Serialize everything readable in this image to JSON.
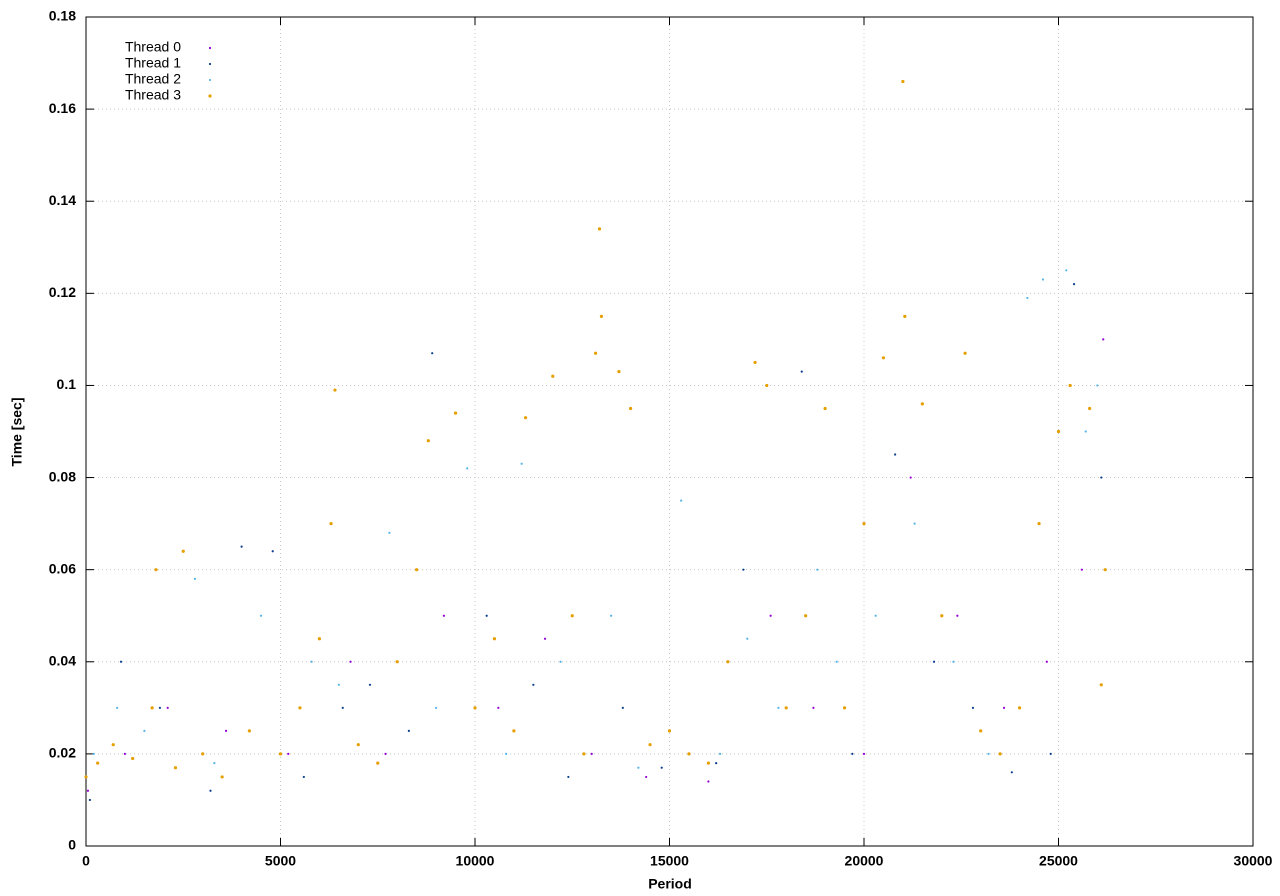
{
  "chart_data": {
    "type": "scatter",
    "xlabel": "Period",
    "ylabel": "Time [sec]",
    "xlim": [
      0,
      30000
    ],
    "xticks": [
      0,
      5000,
      10000,
      15000,
      20000,
      25000,
      30000
    ],
    "ylim": [
      0,
      0.18
    ],
    "yticks": [
      0,
      0.02,
      0.04,
      0.06,
      0.08,
      0.1,
      0.12,
      0.14,
      0.16,
      0.18
    ],
    "grid": true,
    "legend": "top-left",
    "series": [
      {
        "name": "Thread 0",
        "color": "#9400d3",
        "x": [
          50,
          1000,
          2100,
          3600,
          5200,
          6800,
          7700,
          9200,
          10600,
          11800,
          13000,
          14400,
          16000,
          17600,
          18700,
          20000,
          21200,
          22400,
          23600,
          24700,
          25600,
          26150
        ],
        "values": [
          0.012,
          0.02,
          0.03,
          0.025,
          0.02,
          0.04,
          0.02,
          0.05,
          0.03,
          0.045,
          0.02,
          0.015,
          0.014,
          0.05,
          0.03,
          0.02,
          0.08,
          0.05,
          0.03,
          0.04,
          0.06,
          0.11
        ]
      },
      {
        "name": "Thread 1",
        "color": "#0a3f8c",
        "x": [
          100,
          900,
          1900,
          3200,
          4000,
          4800,
          5600,
          6600,
          7300,
          8300,
          8900,
          10300,
          11500,
          12400,
          13800,
          14800,
          16200,
          16900,
          18400,
          19700,
          20800,
          21800,
          22800,
          23800,
          24800,
          25400,
          26100
        ],
        "values": [
          0.01,
          0.04,
          0.03,
          0.012,
          0.065,
          0.064,
          0.015,
          0.03,
          0.035,
          0.025,
          0.107,
          0.05,
          0.035,
          0.015,
          0.03,
          0.017,
          0.018,
          0.06,
          0.103,
          0.02,
          0.085,
          0.04,
          0.03,
          0.016,
          0.02,
          0.122,
          0.08
        ]
      },
      {
        "name": "Thread 2",
        "color": "#56b4e9",
        "x": [
          200,
          800,
          1500,
          2800,
          3300,
          4500,
          5800,
          6500,
          7800,
          9000,
          9800,
          10800,
          11200,
          12200,
          13500,
          14200,
          15300,
          16300,
          17000,
          17800,
          18800,
          19300,
          20300,
          21300,
          22300,
          23200,
          24200,
          24600,
          25200,
          25700,
          26000
        ],
        "values": [
          0.02,
          0.03,
          0.025,
          0.058,
          0.018,
          0.05,
          0.04,
          0.035,
          0.068,
          0.03,
          0.082,
          0.02,
          0.083,
          0.04,
          0.05,
          0.017,
          0.075,
          0.02,
          0.045,
          0.03,
          0.06,
          0.04,
          0.05,
          0.07,
          0.04,
          0.02,
          0.119,
          0.123,
          0.125,
          0.09,
          0.1
        ]
      },
      {
        "name": "Thread 3",
        "color": "#e69f00",
        "x": [
          0,
          300,
          700,
          1200,
          1700,
          1800,
          2300,
          2500,
          3000,
          3500,
          4200,
          5000,
          5500,
          6000,
          6300,
          6400,
          7000,
          7500,
          8000,
          8500,
          8800,
          9500,
          10000,
          10500,
          11000,
          11300,
          12000,
          12500,
          12800,
          13100,
          13200,
          13250,
          13700,
          14000,
          14500,
          15000,
          15500,
          16000,
          16500,
          17200,
          17500,
          18000,
          18500,
          19000,
          19500,
          20000,
          20500,
          21000,
          21050,
          21500,
          22000,
          22600,
          23000,
          23500,
          24000,
          24500,
          25000,
          25300,
          25800,
          26100,
          26200
        ],
        "values": [
          0.015,
          0.018,
          0.022,
          0.019,
          0.03,
          0.06,
          0.017,
          0.064,
          0.02,
          0.015,
          0.025,
          0.02,
          0.03,
          0.045,
          0.07,
          0.099,
          0.022,
          0.018,
          0.04,
          0.06,
          0.088,
          0.094,
          0.03,
          0.045,
          0.025,
          0.093,
          0.102,
          0.05,
          0.02,
          0.107,
          0.134,
          0.115,
          0.103,
          0.095,
          0.022,
          0.025,
          0.02,
          0.018,
          0.04,
          0.105,
          0.1,
          0.03,
          0.05,
          0.095,
          0.03,
          0.07,
          0.106,
          0.166,
          0.115,
          0.096,
          0.05,
          0.107,
          0.025,
          0.02,
          0.03,
          0.07,
          0.09,
          0.1,
          0.095,
          0.035,
          0.06
        ]
      }
    ]
  }
}
